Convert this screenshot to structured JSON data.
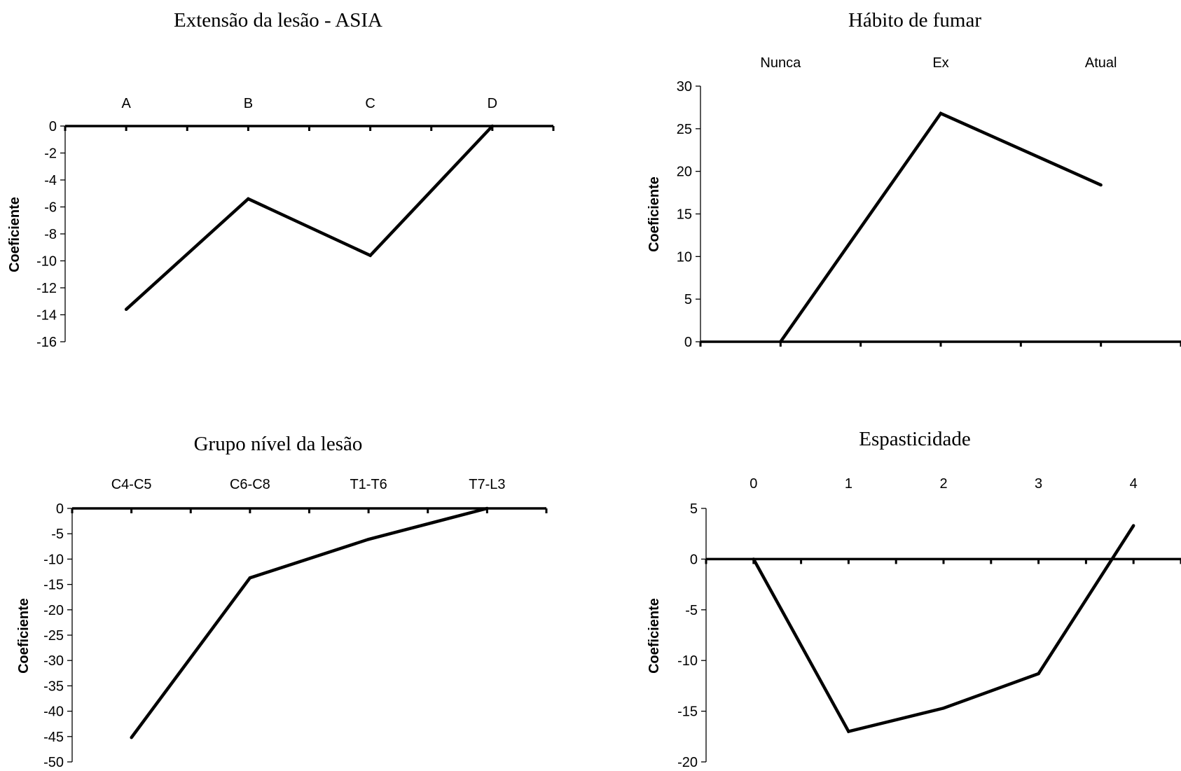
{
  "chart_data": [
    {
      "type": "line",
      "title": "Extensão da lesão - ASIA",
      "ylabel": "Coeficiente",
      "categories": [
        "A",
        "B",
        "C",
        "D"
      ],
      "values": [
        -13.6,
        -5.4,
        -9.6,
        0
      ],
      "ylim": [
        -16,
        0
      ],
      "yticks": [
        0,
        -2,
        -4,
        -6,
        -8,
        -10,
        -12,
        -14,
        -16
      ],
      "ytick_labels": [
        "0",
        "-2",
        "-4",
        "-6",
        "-8",
        "-10",
        "-12",
        "-14",
        "-16"
      ],
      "category_axis": "top"
    },
    {
      "type": "line",
      "title": "Hábito de fumar",
      "ylabel": "Coeficiente",
      "categories": [
        "Nunca",
        "Ex",
        "Atual"
      ],
      "values": [
        0,
        26.8,
        18.4
      ],
      "ylim": [
        0,
        30
      ],
      "yticks": [
        30,
        25,
        20,
        15,
        10,
        5,
        0
      ],
      "ytick_labels": [
        "30",
        "25",
        "20",
        "15",
        "10",
        "5",
        "0"
      ],
      "category_axis": "top"
    },
    {
      "type": "line",
      "title": "Grupo nível da lesão",
      "ylabel": "Coeficiente",
      "categories": [
        "C4-C5",
        "C6-C8",
        "T1-T6",
        "T7-L3"
      ],
      "values": [
        -45.2,
        -13.7,
        -6.1,
        0
      ],
      "ylim": [
        -50,
        0
      ],
      "yticks": [
        0,
        -5,
        -10,
        -15,
        -20,
        -25,
        -30,
        -35,
        -40,
        -45,
        -50
      ],
      "ytick_labels": [
        "0",
        "-5",
        "-10",
        "-15",
        "-20",
        "-25",
        "-30",
        "-35",
        "-40",
        "-45",
        "-50"
      ],
      "category_axis": "top"
    },
    {
      "type": "line",
      "title": "Espasticidade",
      "ylabel": "Coeficiente",
      "categories": [
        "0",
        "1",
        "2",
        "3",
        "4"
      ],
      "values": [
        0,
        -17.0,
        -14.7,
        -11.3,
        3.3
      ],
      "ylim": [
        -20,
        5
      ],
      "yticks": [
        5,
        0,
        -5,
        -10,
        -15,
        -20
      ],
      "ytick_labels": [
        "5",
        "0",
        "-5",
        "-10",
        "-15",
        "-20"
      ],
      "category_axis": "top"
    }
  ]
}
